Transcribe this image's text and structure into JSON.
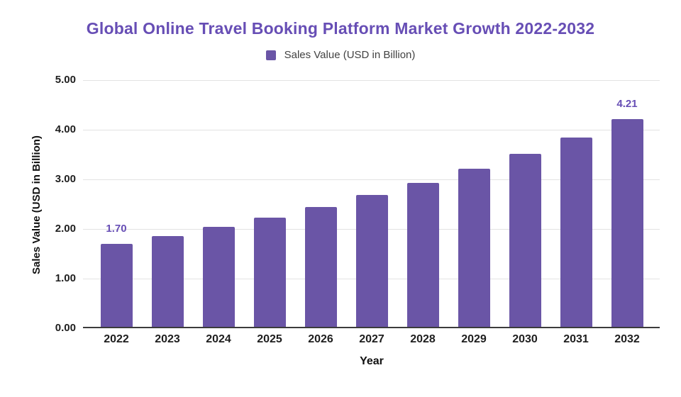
{
  "chart_data": {
    "type": "bar",
    "title": "Global Online Travel Booking Platform Market Growth 2022-2032",
    "legend": "Sales Value (USD in Billion)",
    "xlabel": "Year",
    "ylabel": "Sales Value (USD in Billion)",
    "categories": [
      "2022",
      "2023",
      "2024",
      "2025",
      "2026",
      "2027",
      "2028",
      "2029",
      "2030",
      "2031",
      "2032"
    ],
    "values": [
      1.7,
      1.86,
      2.04,
      2.23,
      2.44,
      2.68,
      2.93,
      3.21,
      3.51,
      3.85,
      4.21
    ],
    "data_labels": [
      "1.70",
      null,
      null,
      null,
      null,
      null,
      null,
      null,
      null,
      null,
      "4.21"
    ],
    "y_ticks": [
      "5.00",
      "4.00",
      "3.00",
      "2.00",
      "1.00",
      "0.00"
    ],
    "ylim": [
      0,
      5
    ],
    "grid": true,
    "legend_position": "top-center",
    "colors": {
      "bar": "#6a55a6",
      "title": "#674eb5",
      "data_label": "#674eb5",
      "axis_text": "#1e1e1e",
      "legend_text": "#424242",
      "gridline": "#e3e3e3",
      "baseline": "#3c3c3c",
      "background": "#ffffff"
    }
  }
}
